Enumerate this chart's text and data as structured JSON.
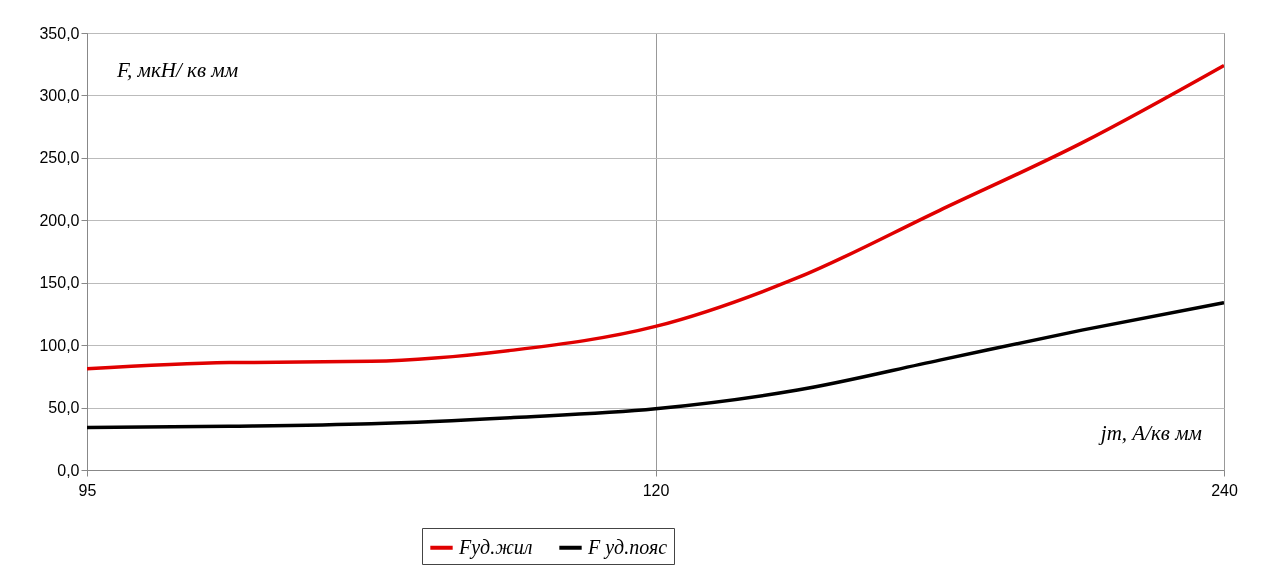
{
  "chart_data": {
    "type": "line",
    "xlabel": "jm, А/кв мм",
    "ylabel": "F, мкН/ кв мм",
    "categories": [
      "95",
      null,
      null,
      null,
      "120",
      null,
      null,
      null,
      "240"
    ],
    "series": [
      {
        "name": "Fуд.жил",
        "color": "#e00000",
        "values": [
          81,
          86,
          87,
          96,
          115,
          154,
          208,
          262,
          324
        ]
      },
      {
        "name": "F уд.пояс",
        "color": "#000000",
        "values": [
          34,
          35,
          37,
          42,
          49,
          64,
          88,
          112,
          134
        ]
      }
    ],
    "ylim": [
      0,
      350
    ],
    "yticks": [
      {
        "value": 0,
        "label": "0,0"
      },
      {
        "value": 50,
        "label": "50,0"
      },
      {
        "value": 100,
        "label": "100,0"
      },
      {
        "value": 150,
        "label": "150,0"
      },
      {
        "value": 200,
        "label": "200,0"
      },
      {
        "value": 250,
        "label": "250,0"
      },
      {
        "value": 300,
        "label": "300,0"
      },
      {
        "value": 350,
        "label": "350,0"
      }
    ],
    "grid": true,
    "legend": "bottom",
    "marker": "none",
    "line_style": "solid"
  }
}
